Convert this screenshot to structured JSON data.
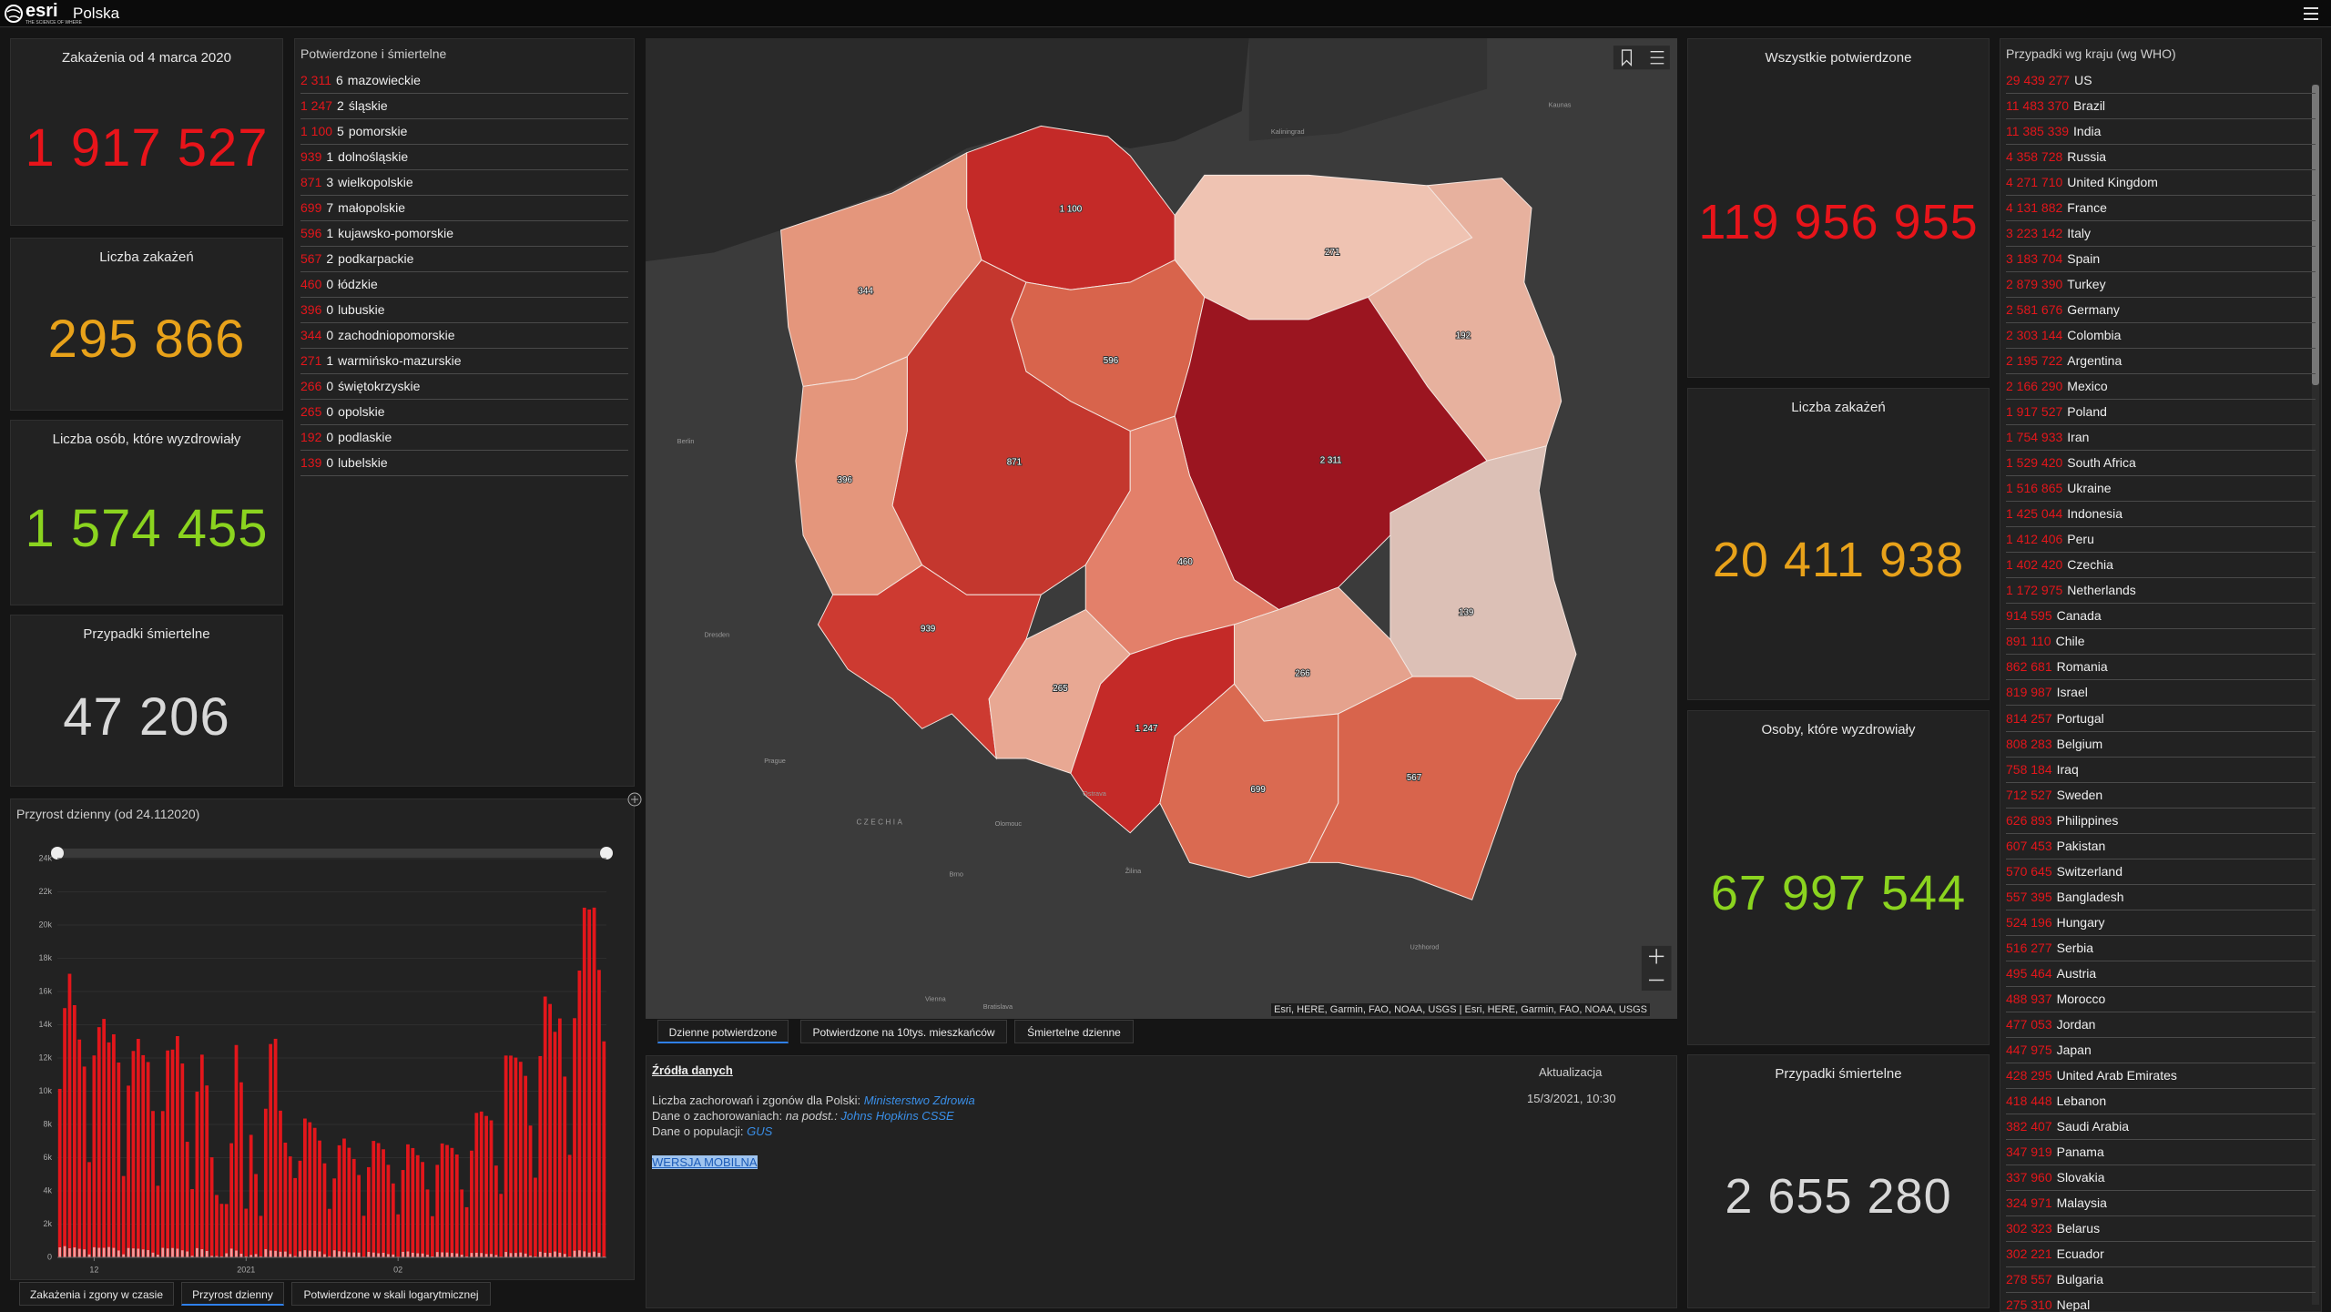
{
  "header": {
    "logo": "esri",
    "tagline": "THE SCIENCE OF WHERE",
    "title": "Polska"
  },
  "poland_stats": [
    {
      "label": "Zakażenia  od 4 marca 2020",
      "value": "1 917 527"
    },
    {
      "label": "Liczba zakażeń",
      "value": "295 866"
    },
    {
      "label": "Liczba osób, które wyzdrowiały",
      "value": "1 574 455"
    },
    {
      "label": "Przypadki śmiertelne",
      "value": "47 206"
    }
  ],
  "voivodeships": {
    "title": "Potwierdzone i śmiertelne",
    "rows": [
      {
        "confirmed": "2 311",
        "deaths": "6",
        "name": "mazowieckie"
      },
      {
        "confirmed": "1 247",
        "deaths": "2",
        "name": "śląskie"
      },
      {
        "confirmed": "1 100",
        "deaths": "5",
        "name": "pomorskie"
      },
      {
        "confirmed": "939",
        "deaths": "1",
        "name": "dolnośląskie"
      },
      {
        "confirmed": "871",
        "deaths": "3",
        "name": "wielkopolskie"
      },
      {
        "confirmed": "699",
        "deaths": "7",
        "name": "małopolskie"
      },
      {
        "confirmed": "596",
        "deaths": "1",
        "name": "kujawsko-pomorskie"
      },
      {
        "confirmed": "567",
        "deaths": "2",
        "name": "podkarpackie"
      },
      {
        "confirmed": "460",
        "deaths": "0",
        "name": "łódzkie"
      },
      {
        "confirmed": "396",
        "deaths": "0",
        "name": "lubuskie"
      },
      {
        "confirmed": "344",
        "deaths": "0",
        "name": "zachodniopomorskie"
      },
      {
        "confirmed": "271",
        "deaths": "1",
        "name": "warmińsko-mazurskie"
      },
      {
        "confirmed": "266",
        "deaths": "0",
        "name": "świętokrzyskie"
      },
      {
        "confirmed": "265",
        "deaths": "0",
        "name": "opolskie"
      },
      {
        "confirmed": "192",
        "deaths": "0",
        "name": "podlaskie"
      },
      {
        "confirmed": "139",
        "deaths": "0",
        "name": "lubelskie"
      }
    ]
  },
  "map": {
    "regions": [
      {
        "label": "1 100",
        "color": "#c42a28"
      },
      {
        "label": "344",
        "color": "#e4967c"
      },
      {
        "label": "271",
        "color": "#efc3b2"
      },
      {
        "label": "192",
        "color": "#e7b19e"
      },
      {
        "label": "596",
        "color": "#d8644c"
      },
      {
        "label": "871",
        "color": "#c4372e"
      },
      {
        "label": "396",
        "color": "#e4967c"
      },
      {
        "label": "2 311",
        "color": "#9b1520"
      },
      {
        "label": "460",
        "color": "#e3806a"
      },
      {
        "label": "139",
        "color": "#dcc0b6"
      },
      {
        "label": "939",
        "color": "#cd3a31"
      },
      {
        "label": "265",
        "color": "#e8a893"
      },
      {
        "label": "266",
        "color": "#e5a28d"
      },
      {
        "label": "1 247",
        "color": "#c42a28"
      },
      {
        "label": "699",
        "color": "#da6a51"
      },
      {
        "label": "567",
        "color": "#d8644c"
      }
    ],
    "places": [
      "Kaliningrad",
      "Kaunas",
      "Berlin",
      "Dresden",
      "Prague",
      "CZECHIA",
      "Ostrava",
      "Olomouc",
      "Brno",
      "Žilina",
      "Vienna",
      "Bratislava",
      "Uzhhorod"
    ],
    "attribution": "Esri, HERE, Garmin, FAO, NOAA, USGS | Esri, HERE, Garmin, FAO, NOAA, USGS",
    "tabs": [
      "Dzienne potwierdzone",
      "Potwierdzone na 10tys. mieszkańców",
      "Śmiertelne dzienne"
    ]
  },
  "chart_data": {
    "type": "bar",
    "title": "Przyrost dzienny (od 24.112020)",
    "categories": [
      null,
      null,
      null,
      null,
      null,
      null,
      null,
      "12",
      null,
      null,
      null,
      null,
      null,
      null,
      null,
      null,
      null,
      null,
      null,
      null,
      null,
      null,
      null,
      null,
      null,
      null,
      null,
      null,
      null,
      null,
      null,
      null,
      null,
      null,
      null,
      null,
      null,
      null,
      "2021",
      null,
      null,
      null,
      null,
      null,
      null,
      null,
      null,
      null,
      null,
      null,
      null,
      null,
      null,
      null,
      null,
      null,
      null,
      null,
      null,
      null,
      null,
      null,
      null,
      null,
      null,
      null,
      null,
      null,
      null,
      "02",
      null,
      null,
      null,
      null,
      null,
      null,
      null,
      null,
      null,
      null,
      null,
      null,
      null,
      null,
      null,
      null,
      null,
      null,
      null,
      null,
      null,
      null,
      null,
      null,
      null,
      null,
      null,
      null,
      null,
      null,
      null,
      null,
      null,
      null,
      null,
      null,
      null,
      null,
      null,
      null,
      null,
      null
    ],
    "series": [
      {
        "color": "#e3161b",
        "values": [
          10139,
          15002,
          17067,
          15178,
          13110,
          11483,
          5733,
          12151,
          13855,
          14352,
          12937,
          13424,
          11726,
          4896,
          10335,
          12423,
          13149,
          12169,
          11755,
          8810,
          4311,
          8806,
          12452,
          12505,
          13316,
          11668,
          6957,
          4110,
          9972,
          12199,
          10346,
          6022,
          3755,
          3222,
          3211,
          6870,
          12780,
          10537,
          2929,
          7374,
          5015,
          2497,
          8946,
          12840,
          13155,
          8829,
          6905,
          6076,
          4773,
          5817,
          8355,
          8133,
          7795,
          7031,
          5659,
          2919,
          4750,
          6745,
          7150,
          6597,
          5924,
          4957,
          2503,
          5429,
          7009,
          6879,
          6506,
          5570,
          4449,
          2590,
          5258,
          6802,
          6579,
          6150,
          5740,
          4088,
          2479,
          5568,
          6855,
          6762,
          6586,
          6191,
          4088,
          3019,
          6424,
          8694,
          8777,
          8510,
          8246,
          5525,
          3822,
          12146,
          12142,
          12025,
          11770,
          10923,
          7933,
          4794,
          12113,
          15698,
          15250,
          13574,
          14380,
          10880,
          6170,
          14396,
          17260,
          21045,
          20936,
          21049,
          17297,
          13000
        ]
      },
      {
        "color": "#f49a9a",
        "values": [
          603,
          674,
          547,
          599,
          517,
          480,
          178,
          609,
          574,
          575,
          620,
          572,
          413,
          183,
          562,
          539,
          522,
          476,
          440,
          285,
          158,
          572,
          537,
          562,
          524,
          426,
          356,
          95,
          555,
          492,
          383,
          92,
          80,
          61,
          245,
          525,
          410,
          221,
          61,
          142,
          199,
          64,
          489,
          409,
          395,
          339,
          351,
          200,
          79,
          368,
          433,
          410,
          390,
          356,
          188,
          69,
          427,
          369,
          353,
          299,
          299,
          285,
          40,
          328,
          291,
          247,
          278,
          196,
          172,
          35,
          333,
          357,
          280,
          245,
          236,
          155,
          55,
          320,
          302,
          293,
          267,
          239,
          161,
          58,
          267,
          278,
          262,
          206,
          207,
          138,
          41,
          326,
          259,
          267,
          292,
          230,
          101,
          55,
          339,
          279,
          271,
          354,
          280,
          207,
          53,
          400,
          423,
          364,
          287,
          349,
          270,
          48
        ]
      }
    ],
    "ylim": [
      0,
      24000
    ],
    "yticks": [
      0,
      {
        "value": 2000,
        "label": "2k"
      },
      {
        "value": 4000,
        "label": "4k"
      },
      {
        "value": 6000,
        "label": "6k"
      },
      {
        "value": 8000,
        "label": "8k"
      },
      {
        "value": 10000,
        "label": "10k"
      },
      {
        "value": 12000,
        "label": "12k"
      },
      {
        "value": 14000,
        "label": "14k"
      },
      {
        "value": 16000,
        "label": "16k"
      },
      {
        "value": 18000,
        "label": "18k"
      },
      {
        "value": 20000,
        "label": "20k"
      },
      {
        "value": 22000,
        "label": "22k"
      },
      {
        "value": 24000,
        "label": "24k"
      }
    ]
  },
  "chart_tabs": [
    "Zakażenia i zgony w czasie",
    "Przyrost dzienny",
    "Potwierdzone w skali logarytmicznej"
  ],
  "sources": {
    "title": "Źródła danych",
    "update_label": "Aktualizacja",
    "update_date": "15/3/2021, 10:30",
    "line1_text": "Liczba zachorowań i zgonów dla Polski: ",
    "line1_link": "Ministerstwo Zdrowia",
    "line2_text": "Dane o zachorowaniach: ",
    "line2_note": "na podst.: ",
    "line2_link": "Johns Hopkins CSSE",
    "line3_text": "Dane o populacji: ",
    "line3_link": "GUS",
    "mobile": "WERSJA MOBILNA"
  },
  "world_stats": [
    {
      "label": "Wszystkie potwierdzone",
      "value": "119 956 955"
    },
    {
      "label": "Liczba zakażeń",
      "value": "20 411 938"
    },
    {
      "label": "Osoby, które wyzdrowiały",
      "value": "67 997 544"
    },
    {
      "label": "Przypadki śmiertelne",
      "value": "2 655 280"
    }
  ],
  "countries": {
    "title": "Przypadki wg kraju (wg WHO)",
    "rows": [
      {
        "cases": "29 439 277",
        "name": "US"
      },
      {
        "cases": "11 483 370",
        "name": "Brazil"
      },
      {
        "cases": "11 385 339",
        "name": "India"
      },
      {
        "cases": "4 358 728",
        "name": "Russia"
      },
      {
        "cases": "4 271 710",
        "name": "United Kingdom"
      },
      {
        "cases": "4 131 882",
        "name": "France"
      },
      {
        "cases": "3 223 142",
        "name": "Italy"
      },
      {
        "cases": "3 183 704",
        "name": "Spain"
      },
      {
        "cases": "2 879 390",
        "name": "Turkey"
      },
      {
        "cases": "2 581 676",
        "name": "Germany"
      },
      {
        "cases": "2 303 144",
        "name": "Colombia"
      },
      {
        "cases": "2 195 722",
        "name": "Argentina"
      },
      {
        "cases": "2 166 290",
        "name": "Mexico"
      },
      {
        "cases": "1 917 527",
        "name": "Poland"
      },
      {
        "cases": "1 754 933",
        "name": "Iran"
      },
      {
        "cases": "1 529 420",
        "name": "South Africa"
      },
      {
        "cases": "1 516 865",
        "name": "Ukraine"
      },
      {
        "cases": "1 425 044",
        "name": "Indonesia"
      },
      {
        "cases": "1 412 406",
        "name": "Peru"
      },
      {
        "cases": "1 402 420",
        "name": "Czechia"
      },
      {
        "cases": "1 172 975",
        "name": "Netherlands"
      },
      {
        "cases": "914 595",
        "name": "Canada"
      },
      {
        "cases": "891 110",
        "name": "Chile"
      },
      {
        "cases": "862 681",
        "name": "Romania"
      },
      {
        "cases": "819 987",
        "name": "Israel"
      },
      {
        "cases": "814 257",
        "name": "Portugal"
      },
      {
        "cases": "808 283",
        "name": "Belgium"
      },
      {
        "cases": "758 184",
        "name": "Iraq"
      },
      {
        "cases": "712 527",
        "name": "Sweden"
      },
      {
        "cases": "626 893",
        "name": "Philippines"
      },
      {
        "cases": "607 453",
        "name": "Pakistan"
      },
      {
        "cases": "570 645",
        "name": "Switzerland"
      },
      {
        "cases": "557 395",
        "name": "Bangladesh"
      },
      {
        "cases": "524 196",
        "name": "Hungary"
      },
      {
        "cases": "516 277",
        "name": "Serbia"
      },
      {
        "cases": "495 464",
        "name": "Austria"
      },
      {
        "cases": "488 937",
        "name": "Morocco"
      },
      {
        "cases": "477 053",
        "name": "Jordan"
      },
      {
        "cases": "447 975",
        "name": "Japan"
      },
      {
        "cases": "428 295",
        "name": "United Arab Emirates"
      },
      {
        "cases": "418 448",
        "name": "Lebanon"
      },
      {
        "cases": "382 407",
        "name": "Saudi Arabia"
      },
      {
        "cases": "347 919",
        "name": "Panama"
      },
      {
        "cases": "337 960",
        "name": "Slovakia"
      },
      {
        "cases": "324 971",
        "name": "Malaysia"
      },
      {
        "cases": "302 323",
        "name": "Belarus"
      },
      {
        "cases": "302 221",
        "name": "Ecuador"
      },
      {
        "cases": "278 557",
        "name": "Bulgaria"
      },
      {
        "cases": "275 310",
        "name": "Nepal"
      }
    ]
  }
}
